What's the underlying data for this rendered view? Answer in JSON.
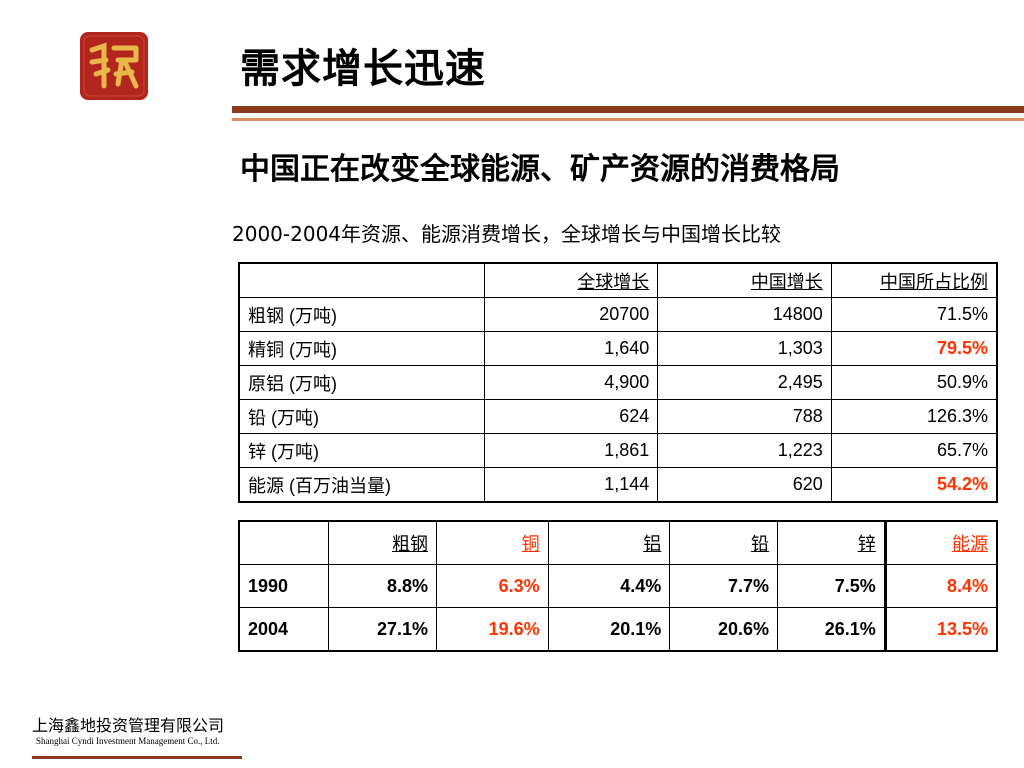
{
  "header": {
    "title": "需求增长迅速",
    "subtitle": "中国正在改变全球能源、矿产资源的消费格局",
    "caption": "2000-2004年资源、能源消费增长，全球增长与中国增长比较"
  },
  "table1": {
    "headers": [
      "",
      "全球增长",
      "中国增长",
      "中国所占比例"
    ],
    "rows": [
      {
        "label": "粗钢  (万吨)",
        "global": "20700",
        "china": "14800",
        "share": "71.5%"
      },
      {
        "label": "精铜 (万吨)",
        "global": "1,640",
        "china": "1,303",
        "share": "79.5%"
      },
      {
        "label": "原铝 (万吨)",
        "global": "4,900",
        "china": "2,495",
        "share": "50.9%"
      },
      {
        "label": "铅  (万吨)",
        "global": "624",
        "china": "788",
        "share": "126.3%"
      },
      {
        "label": "锌  (万吨)",
        "global": "1,861",
        "china": "1,223",
        "share": "65.7%"
      },
      {
        "label": "能源 (百万油当量)",
        "global": "1,144",
        "china": "620",
        "share": "54.2%"
      }
    ]
  },
  "table2": {
    "headers": [
      "",
      "粗钢",
      "铜",
      "铝",
      "铅",
      "锌",
      "能源"
    ],
    "rows": [
      {
        "year": "1990",
        "values": [
          "8.8%",
          "6.3%",
          "4.4%",
          "7.7%",
          "7.5%",
          "8.4%"
        ]
      },
      {
        "year": "2004",
        "values": [
          "27.1%",
          "19.6%",
          "20.1%",
          "20.6%",
          "26.1%",
          "13.5%"
        ]
      }
    ]
  },
  "footer": {
    "company_cn": "上海鑫地投资管理有限公司",
    "company_en": "Shanghai Cyndi Investment Management Co., Ltd."
  },
  "colors": {
    "accent_brown": "#8b3a1a",
    "highlight_red": "#ff3300",
    "logo_red": "#b3261e",
    "logo_gold": "#e8b84a"
  },
  "icons": {
    "logo": "company-seal-logo-icon"
  }
}
